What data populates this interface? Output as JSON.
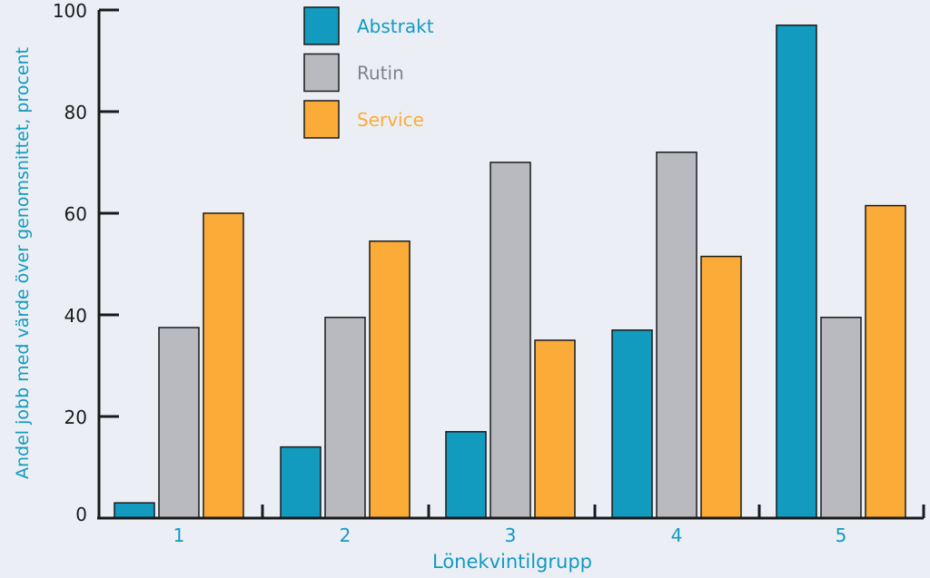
{
  "chart_data": {
    "type": "bar",
    "categories": [
      "1",
      "2",
      "3",
      "4",
      "5"
    ],
    "series": [
      {
        "name": "Abstrakt",
        "color": "#129abf",
        "values": [
          3,
          14,
          17,
          37,
          97
        ]
      },
      {
        "name": "Rutin",
        "color": "#b9babf",
        "values": [
          37.5,
          39.5,
          70,
          72,
          39.5
        ]
      },
      {
        "name": "Service",
        "color": "#fbab38",
        "values": [
          60,
          54.5,
          35,
          51.5,
          61.5
        ]
      }
    ],
    "title": "",
    "xlabel": "Lönekvintilgrupp",
    "ylabel": "Andel jobb med värde över genomsnittet, procent",
    "ylim": [
      0,
      100
    ],
    "yticks": [
      "0",
      "20",
      "40",
      "60",
      "80",
      "100"
    ],
    "grid": false,
    "legend_position": "top-left"
  },
  "colors": {
    "background": "#ebeff5",
    "axis": "#1a1a1a",
    "label": "#129abf",
    "bar_outline": "#1a1a1a"
  }
}
